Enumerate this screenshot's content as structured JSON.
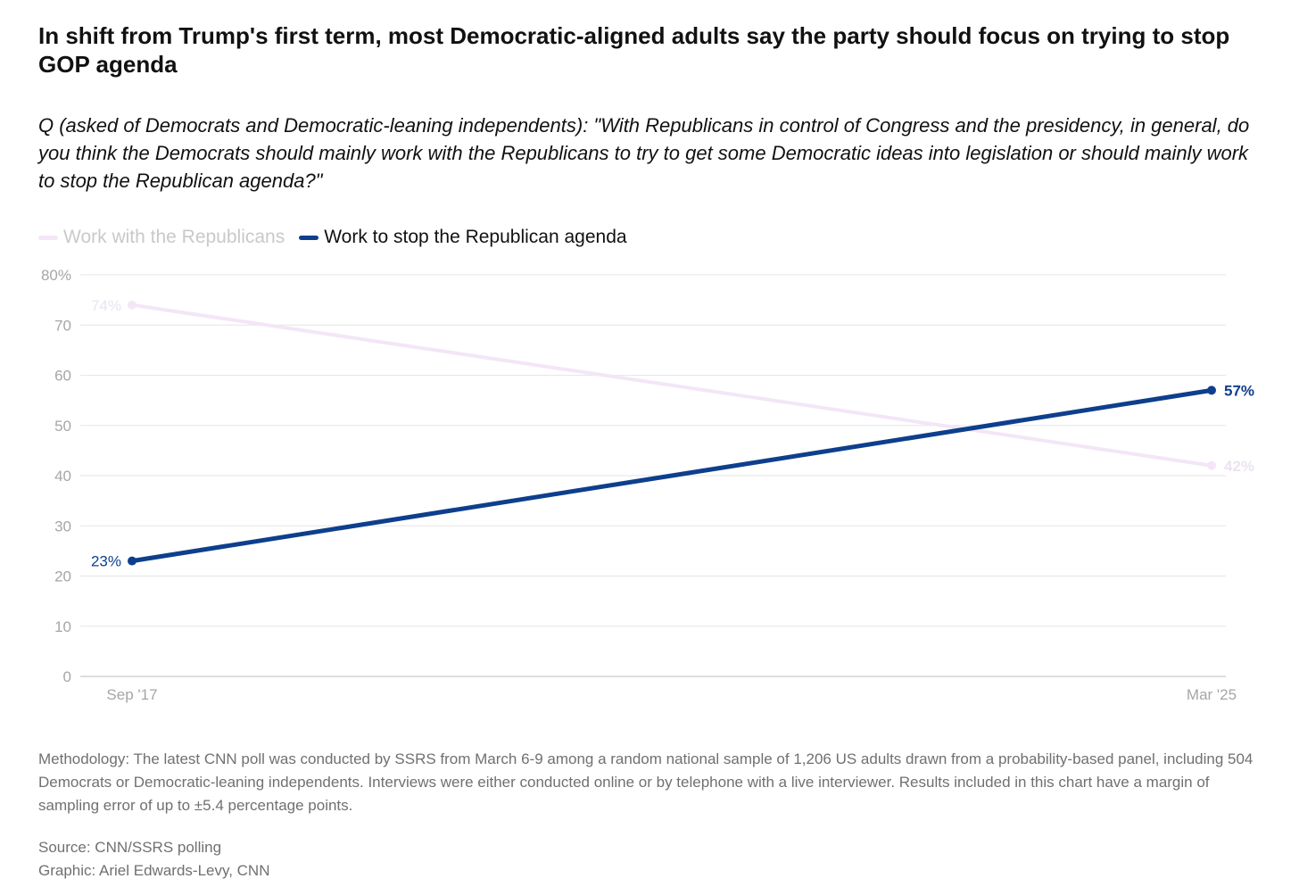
{
  "title": "In shift from Trump's first term, most Democratic-aligned adults say the party should focus on trying to stop GOP agenda",
  "subtitle": "Q (asked of Democrats and Democratic-leaning independents): \"With Republicans in control of Congress and the presidency, in general, do you think the Democrats should mainly work with the Republicans to try to get some Democratic ideas into legislation or should mainly work to stop the Republican agenda?\"",
  "colors": {
    "work_with": "#f3e6f7",
    "stop_agenda": "#0d3f8c",
    "grid": "#e6e6e6",
    "axis": "#bdbdbd"
  },
  "chart_data": {
    "type": "line",
    "x": [
      "Sep '17",
      "Mar '25"
    ],
    "series": [
      {
        "name": "Work with the Republicans",
        "values": [
          74,
          42
        ],
        "labels": [
          "74%",
          "42%"
        ],
        "color": "#f3e6f7"
      },
      {
        "name": "Work to stop the Republican agenda",
        "values": [
          23,
          57
        ],
        "labels": [
          "23%",
          "57%"
        ],
        "color": "#0d3f8c"
      }
    ],
    "y_ticks": [
      "80%",
      "70",
      "60",
      "50",
      "40",
      "30",
      "20",
      "10",
      "0"
    ],
    "y_tick_values": [
      80,
      70,
      60,
      50,
      40,
      30,
      20,
      10,
      0
    ],
    "ylim": [
      0,
      80
    ],
    "grid": true,
    "legend_position": "top-left"
  },
  "footer": {
    "methodology": "Methodology: The latest CNN poll was conducted by SSRS from March 6-9 among a random national sample of 1,206 US adults drawn from a probability-based panel, including 504 Democrats or Democratic-leaning independents. Interviews were either conducted online or by telephone with a live interviewer. Results included in this chart have a margin of sampling error of up to ±5.4 percentage points.",
    "source": "Source: CNN/SSRS polling",
    "graphic": "Graphic: Ariel Edwards-Levy, CNN"
  }
}
